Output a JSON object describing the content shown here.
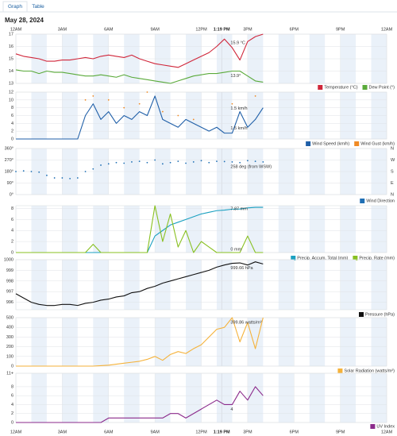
{
  "tabs": [
    "Graph",
    "Table"
  ],
  "date": "May 28, 2024",
  "time_axis": {
    "xlim": [
      0,
      24
    ],
    "xticks": [
      {
        "value": 0,
        "label": "12AM"
      },
      {
        "value": 3,
        "label": "3AM"
      },
      {
        "value": 6,
        "label": "6AM"
      },
      {
        "value": 9,
        "label": "9AM"
      },
      {
        "value": 12,
        "label": "12PM"
      },
      {
        "value": 15,
        "label": "3PM"
      },
      {
        "value": 18,
        "label": "6PM"
      },
      {
        "value": 21,
        "label": "9PM"
      },
      {
        "value": 24,
        "label": "12AM"
      }
    ],
    "now": {
      "value": 13.32,
      "label": "1:19 PM"
    },
    "x": [
      0,
      0.5,
      1,
      1.5,
      2,
      2.5,
      3,
      3.5,
      4,
      4.5,
      5,
      5.5,
      6,
      6.5,
      7,
      7.5,
      8,
      8.5,
      9,
      9.5,
      10,
      10.5,
      11,
      11.5,
      12,
      12.5,
      13,
      13.5,
      14,
      14.5,
      15,
      15.5,
      16
    ]
  },
  "chart_data": [
    {
      "type": "line",
      "ylim": [
        13,
        17
      ],
      "yticks": [
        13,
        14,
        15,
        16,
        17
      ],
      "grid": true,
      "series": [
        {
          "name": "Temperature (°C)",
          "color": "#d0263a",
          "annotation": "15.9 °C",
          "values": [
            15.4,
            15.2,
            15.1,
            15.0,
            14.8,
            14.8,
            14.9,
            14.9,
            15.0,
            15.1,
            15.0,
            15.2,
            15.3,
            15.2,
            15.1,
            15.3,
            15.0,
            14.8,
            14.6,
            14.5,
            14.4,
            14.3,
            14.6,
            14.9,
            15.2,
            15.5,
            16.0,
            16.6,
            15.9,
            14.9,
            16.4,
            16.8,
            17.0
          ]
        },
        {
          "name": "Dew Point (°)",
          "color": "#5aaa3a",
          "annotation": "13.9°",
          "values": [
            14.1,
            14.0,
            14.0,
            13.8,
            14.0,
            13.9,
            13.9,
            13.8,
            13.7,
            13.6,
            13.6,
            13.7,
            13.6,
            13.5,
            13.7,
            13.5,
            13.4,
            13.3,
            13.2,
            13.1,
            13.0,
            13.2,
            13.4,
            13.6,
            13.7,
            13.8,
            13.8,
            13.9,
            14.0,
            14.0,
            13.6,
            13.2,
            13.1
          ]
        }
      ]
    },
    {
      "type": "line",
      "ylim": [
        0,
        12
      ],
      "yticks": [
        0,
        2,
        4,
        6,
        8,
        10,
        12
      ],
      "grid": true,
      "series": [
        {
          "name": "Wind Speed (km/h)",
          "color": "#1f5fa8",
          "annotation": "1.5 km/h",
          "values": [
            0,
            0,
            0,
            0,
            0,
            0,
            0,
            0,
            0,
            6,
            9,
            5,
            7,
            4,
            6,
            5,
            7,
            6,
            11,
            5,
            4,
            3,
            5,
            4,
            3,
            2,
            3,
            1.5,
            1.5,
            7,
            3,
            5,
            8
          ]
        },
        {
          "name": "Wind Gust (km/h)",
          "color": "#f08a24",
          "style": "dots",
          "annotation": "1.5 km/h",
          "values": [
            null,
            null,
            null,
            null,
            null,
            null,
            null,
            null,
            null,
            10,
            11,
            null,
            10,
            null,
            8,
            null,
            9,
            12,
            null,
            7,
            null,
            6,
            null,
            5,
            null,
            null,
            null,
            null,
            9,
            null,
            null,
            11,
            null
          ]
        }
      ]
    },
    {
      "type": "scatter",
      "ylim": [
        0,
        360
      ],
      "yticks": [
        {
          "value": 0,
          "label": "0°"
        },
        {
          "value": 90,
          "label": "90°"
        },
        {
          "value": 180,
          "label": "180°"
        },
        {
          "value": 270,
          "label": "270°"
        },
        {
          "value": 360,
          "label": "360°"
        }
      ],
      "y2lim": [
        0,
        360
      ],
      "y2ticks": [
        {
          "value": 0,
          "label": "N"
        },
        {
          "value": 90,
          "label": "E"
        },
        {
          "value": 180,
          "label": "S"
        },
        {
          "value": 270,
          "label": "W"
        },
        {
          "value": 360,
          "label": "N"
        }
      ],
      "grid": true,
      "series": [
        {
          "name": "Wind Direction",
          "color": "#1f6fb4",
          "annotation": "258 deg (from WSW)",
          "values": [
            180,
            185,
            180,
            175,
            150,
            130,
            130,
            125,
            130,
            180,
            200,
            230,
            240,
            250,
            245,
            255,
            260,
            250,
            270,
            240,
            250,
            260,
            245,
            255,
            265,
            250,
            260,
            258,
            255,
            250,
            265,
            260,
            255
          ]
        }
      ]
    },
    {
      "type": "line",
      "ylim": [
        0,
        8.5
      ],
      "yticks": [
        0,
        2,
        4,
        6,
        8
      ],
      "grid": true,
      "series": [
        {
          "name": "Precip. Accum. Total (mm)",
          "color": "#1aa0c0",
          "annotation": "7.87 mm",
          "values": [
            0,
            0,
            0,
            0,
            0,
            0,
            0,
            0,
            0,
            0,
            0,
            0,
            0,
            0,
            0,
            0,
            0,
            0,
            3.0,
            4.0,
            5.0,
            5.5,
            6.0,
            6.5,
            7.0,
            7.3,
            7.6,
            7.7,
            7.87,
            7.9,
            8.1,
            8.2,
            8.2
          ]
        },
        {
          "name": "Precip. Rate (mm)",
          "color": "#88c020",
          "annotation": "0 mm",
          "values": [
            0,
            0,
            0,
            0,
            0,
            0,
            0,
            0,
            0,
            0,
            1.5,
            0,
            0,
            0,
            0,
            0,
            0,
            0,
            8.5,
            2,
            7,
            1,
            4,
            0,
            2,
            1,
            0,
            0,
            0,
            0,
            3,
            0,
            0
          ]
        }
      ]
    },
    {
      "type": "line",
      "ylim": [
        995.3,
        1000
      ],
      "yticks": [
        996,
        997,
        998,
        999,
        1000
      ],
      "grid": true,
      "series": [
        {
          "name": "Pressure (hPa)",
          "color": "#111111",
          "annotation": "999.66 hPa",
          "values": [
            996.8,
            996.4,
            996.0,
            995.8,
            995.7,
            995.7,
            995.8,
            995.8,
            995.7,
            995.9,
            996.0,
            996.2,
            996.3,
            996.5,
            996.6,
            996.9,
            997.0,
            997.3,
            997.5,
            997.8,
            998.0,
            998.2,
            998.4,
            998.6,
            998.8,
            999.0,
            999.3,
            999.5,
            999.66,
            999.7,
            999.5,
            999.8,
            999.6
          ]
        }
      ]
    },
    {
      "type": "line",
      "ylim": [
        0,
        500
      ],
      "yticks": [
        0,
        100,
        200,
        300,
        400,
        500
      ],
      "grid": true,
      "series": [
        {
          "name": "Solar Radiation (watts/m²)",
          "color": "#f5b23a",
          "annotation": "399.86 watts/m²",
          "values": [
            0,
            0,
            0,
            0,
            0,
            0,
            0,
            0,
            0,
            0,
            0,
            5,
            10,
            20,
            30,
            40,
            50,
            70,
            100,
            60,
            120,
            150,
            130,
            180,
            220,
            300,
            380,
            400,
            500,
            250,
            450,
            180,
            500
          ]
        }
      ]
    },
    {
      "type": "line",
      "ylim": [
        0,
        11
      ],
      "yticks": [
        0,
        2,
        4,
        6,
        8,
        {
          "value": 11,
          "label": "11+"
        }
      ],
      "grid": true,
      "series": [
        {
          "name": "UV Index",
          "color": "#8b2a8b",
          "annotation": "4",
          "values": [
            0,
            0,
            0,
            0,
            0,
            0,
            0,
            0,
            0,
            0,
            0,
            0,
            1,
            1,
            1,
            1,
            1,
            1,
            1,
            1,
            2,
            2,
            1,
            2,
            3,
            4,
            5,
            4,
            4,
            7,
            5,
            8,
            6
          ]
        }
      ]
    }
  ]
}
